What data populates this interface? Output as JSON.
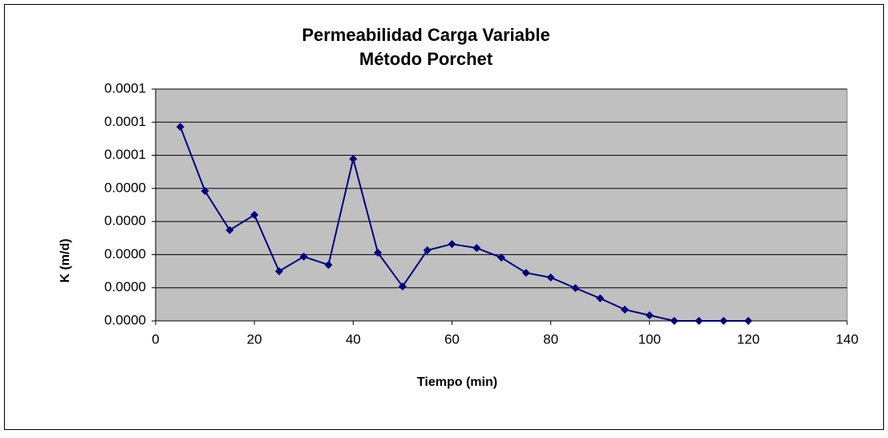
{
  "chart_data": {
    "type": "line",
    "title": "Permeabilidad Carga Variable",
    "subtitle": "Método Porchet",
    "x_label": "Tiempo (min)",
    "y_label": "K (m/d)",
    "x": [
      5,
      10,
      15,
      20,
      25,
      30,
      35,
      40,
      45,
      50,
      55,
      60,
      65,
      70,
      75,
      80,
      85,
      90,
      95,
      100,
      105,
      110,
      115,
      120
    ],
    "series": [
      {
        "name": "K",
        "color": "#000080",
        "values": [
          5.86e-05,
          3.92e-05,
          2.74e-05,
          3.2e-05,
          1.5e-05,
          1.94e-05,
          1.69e-05,
          4.89e-05,
          2.06e-05,
          1.04e-05,
          2.13e-05,
          2.32e-05,
          2.2e-05,
          1.91e-05,
          1.45e-05,
          1.31e-05,
          9.9e-06,
          6.8e-06,
          3.4e-06,
          1.7e-06,
          0,
          0,
          0,
          0
        ]
      }
    ],
    "xlim": [
      0,
      140
    ],
    "xticks": [
      0,
      20,
      40,
      60,
      80,
      100,
      120,
      140
    ],
    "ylim": [
      0,
      7e-05
    ],
    "yticks": [
      {
        "value": 0,
        "label": "0.0000"
      },
      {
        "value": 1e-05,
        "label": "0.0000"
      },
      {
        "value": 2e-05,
        "label": "0.0000"
      },
      {
        "value": 3e-05,
        "label": "0.0000"
      },
      {
        "value": 4e-05,
        "label": "0.0000"
      },
      {
        "value": 5e-05,
        "label": "0.0001"
      },
      {
        "value": 6e-05,
        "label": "0.0001"
      },
      {
        "value": 7e-05,
        "label": "0.0001"
      }
    ],
    "grid": true,
    "plot_background": "#c0c0c0"
  }
}
